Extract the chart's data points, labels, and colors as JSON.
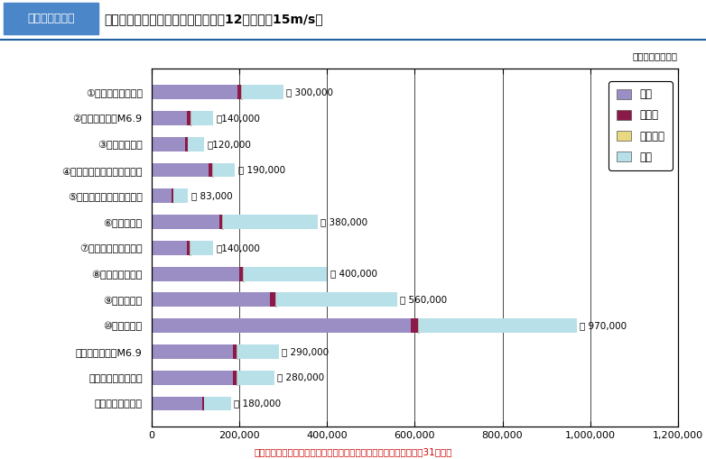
{
  "title_box": "図２－３－５２",
  "title_text": "各地震で想定される建物被害（冬昼12時，風速15m/s）",
  "subtitle": "（全壊棟数：棟）",
  "source": "出典：中央防災会議「東南海，南海地震等に関する専門調査会」第31回資料",
  "categories": [
    "①猿投－高浜断層帯",
    "②名古屋市直下M6.9",
    "③加木屋断層帯",
    "④養老－桑名－四日市断層帯",
    "⑤布引山地東縁断層帯東部",
    "⑥花折断層帯",
    "⑦奈良盆地東縁断層帯",
    "⑧京都西山断層帯",
    "⑨生駒断層帯",
    "⑩上町断層帯",
    "⑪阪神地域直下M6.9",
    "⑫中央構造線断層帯",
    "⑬山崎断層帯主部"
  ],
  "labels": [
    "約 300,000",
    "約140,000",
    "約120,000",
    "約 190,000",
    "約 83,000",
    "約 380,000",
    "約140,000",
    "約 400,000",
    "約 560,000",
    "約 970,000",
    "約 290,000",
    "約 280,000",
    "約 180,000"
  ],
  "shaking": [
    195000,
    80000,
    75000,
    130000,
    45000,
    155000,
    80000,
    200000,
    270000,
    590000,
    185000,
    185000,
    115000
  ],
  "liquefaction": [
    8000,
    8000,
    7000,
    8000,
    4000,
    5000,
    7000,
    8000,
    12000,
    18000,
    8000,
    8000,
    4000
  ],
  "steep_slope": [
    2000,
    2000,
    1000,
    2000,
    1000,
    2000,
    2000,
    2000,
    3000,
    2000,
    2000,
    2000,
    1000
  ],
  "fire": [
    95000,
    50000,
    37000,
    50000,
    33000,
    216000,
    51000,
    190000,
    275000,
    360000,
    95000,
    85000,
    60000
  ],
  "color_shaking": "#9b8ec4",
  "color_liquefaction": "#8b1a4a",
  "color_steep_slope": "#e8d880",
  "color_fire": "#b8e0e8",
  "legend_labels": [
    "揺れ",
    "液状化",
    "急傾斜地",
    "火災"
  ],
  "xlim_max": 1200000,
  "xticks": [
    0,
    200000,
    400000,
    600000,
    800000,
    1000000,
    1200000
  ],
  "xtick_labels": [
    "0",
    "200,000",
    "400,000",
    "600,000",
    "800,000",
    "1,000,000",
    "1,200,000"
  ],
  "title_box_bg": "#4a86c8",
  "title_box_fg": "#ffffff",
  "source_color": "#cc0000"
}
